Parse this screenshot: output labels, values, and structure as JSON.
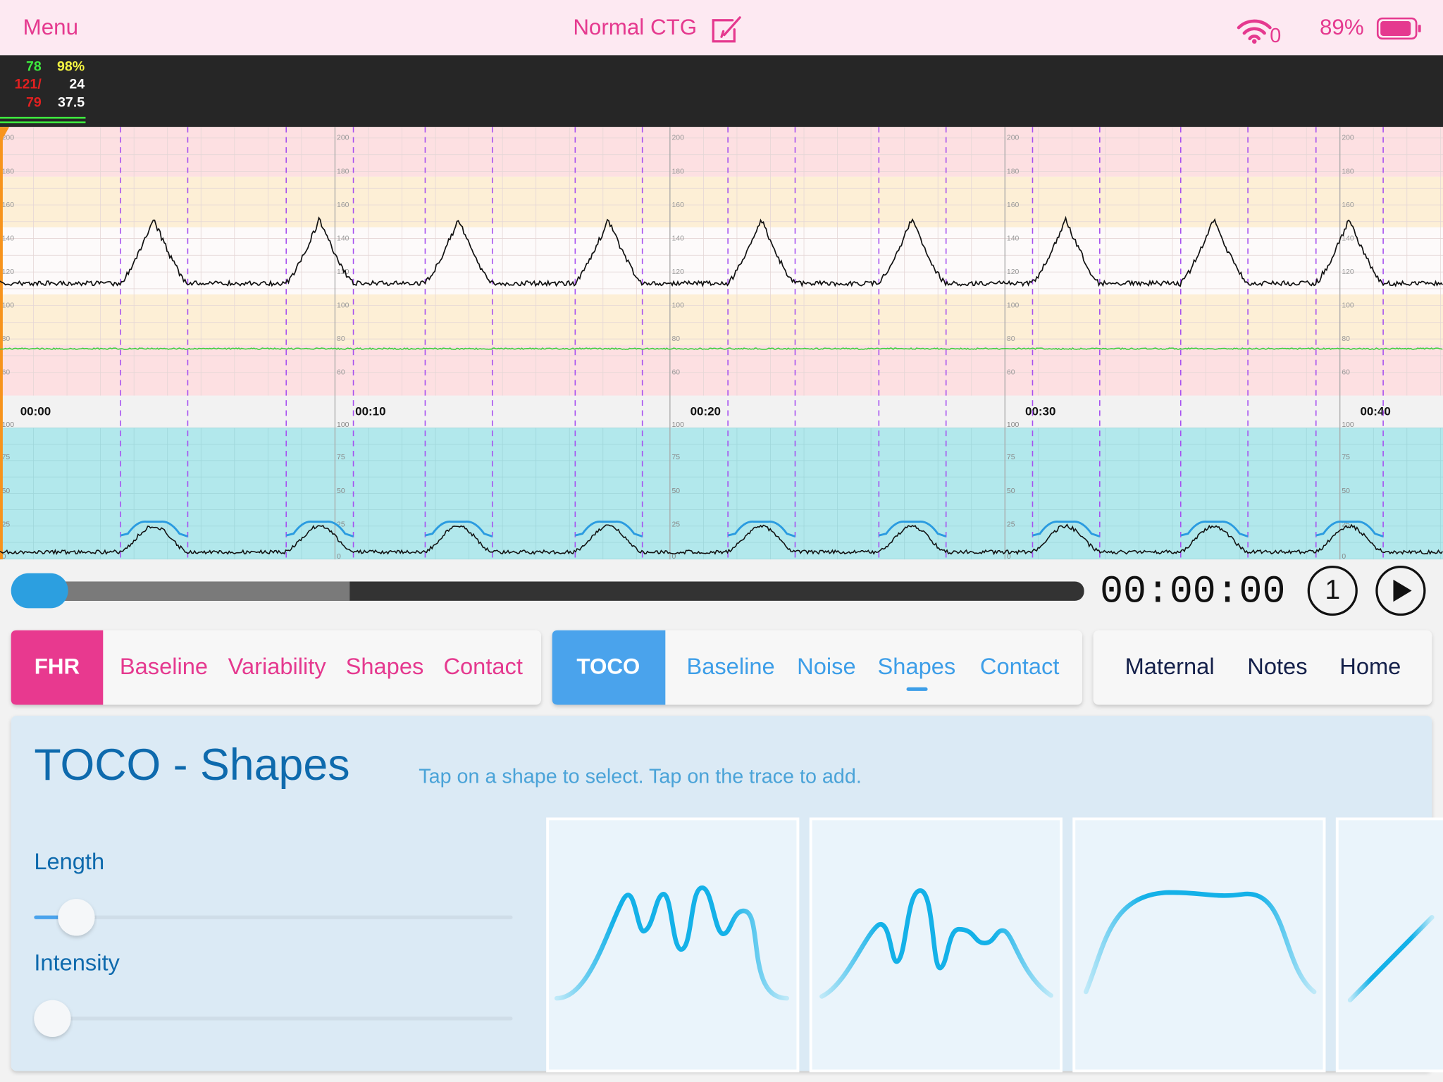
{
  "header": {
    "menu": "Menu",
    "title": "Normal CTG",
    "wifi_badge": "0",
    "battery": "89%"
  },
  "vitals": {
    "pulse": "78",
    "spo2": "98%",
    "bp_systolic": "121/",
    "resp": "24",
    "bp_diastolic": "79",
    "temp": "37.5"
  },
  "trace": {
    "fhr_axis": [
      "200",
      "180",
      "160",
      "140",
      "120",
      "100",
      "80",
      "60"
    ],
    "toco_axis": [
      "100",
      "75",
      "50",
      "25",
      "0"
    ],
    "time_labels": [
      "00:00",
      "00:10",
      "00:20",
      "00:30",
      "00:40"
    ]
  },
  "player": {
    "time": "00:00:00",
    "speed": "1"
  },
  "tabs": {
    "fhr": {
      "label": "FHR",
      "items": [
        "Baseline",
        "Variability",
        "Shapes",
        "Contact"
      ]
    },
    "toco": {
      "label": "TOCO",
      "items": [
        "Baseline",
        "Noise",
        "Shapes",
        "Contact"
      ]
    },
    "other": [
      "Maternal",
      "Notes",
      "Home"
    ]
  },
  "panel": {
    "title": "TOCO - Shapes",
    "hint": "Tap on a shape to select. Tap on the trace to add.",
    "sliders": [
      "Length",
      "Intensity"
    ]
  }
}
